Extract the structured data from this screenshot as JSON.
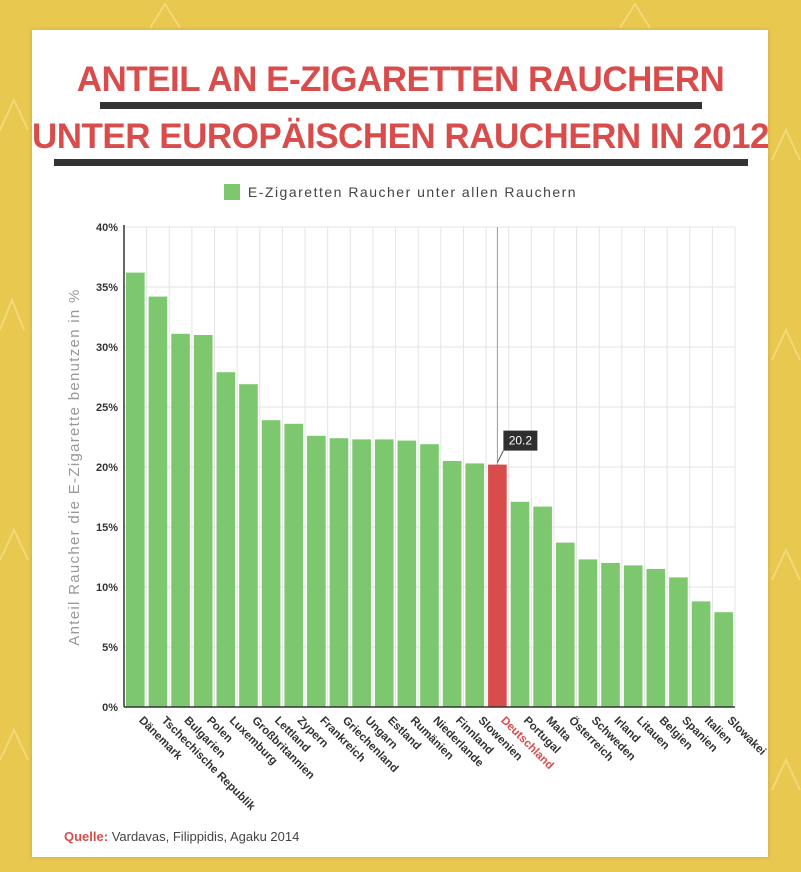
{
  "title_line1": "ANTEIL AN E-ZIGARETTEN RAUCHERN",
  "title_line2": "UNTER EUROPÄISCHEN RAUCHERN IN 2012",
  "source_label": "Quelle:",
  "source_text": " Vardavas, Filippidis, Agaku 2014",
  "colors": {
    "bar": "#7dc86e",
    "highlight": "#d94c4c",
    "title": "#d94c4c",
    "background": "#e8c84f"
  },
  "chart_data": {
    "type": "bar",
    "legend": "E-Zigaretten Raucher unter allen Rauchern",
    "legend_position": "top-center",
    "ylabel": "Anteil Raucher die E-Zigarette benutzen in %",
    "ylim": [
      0,
      40
    ],
    "yticks": [
      "0%",
      "5%",
      "10%",
      "15%",
      "20%",
      "25%",
      "30%",
      "35%",
      "40%"
    ],
    "grid": true,
    "highlight_category": "Deutschland",
    "highlight_label": "20.2",
    "categories": [
      "Dänemark",
      "Tschechische Republik",
      "Bulgarien",
      "Polen",
      "Luxemburg",
      "Großbritannien",
      "Lettland",
      "Zypern",
      "Frankreich",
      "Griechenland",
      "Ungarn",
      "Estland",
      "Rumänien",
      "Niederlande",
      "Finnland",
      "Slowenien",
      "Deutschland",
      "Portugal",
      "Malta",
      "Österreich",
      "Schweden",
      "Irland",
      "Litauen",
      "Belgien",
      "Spanien",
      "Italien",
      "Slowakei"
    ],
    "values": [
      36.2,
      34.2,
      31.1,
      31.0,
      27.9,
      26.9,
      23.9,
      23.6,
      22.6,
      22.4,
      22.3,
      22.3,
      22.2,
      21.9,
      20.5,
      20.3,
      20.2,
      17.1,
      16.7,
      13.7,
      12.3,
      12.0,
      11.8,
      11.5,
      10.8,
      8.8,
      7.9
    ]
  }
}
